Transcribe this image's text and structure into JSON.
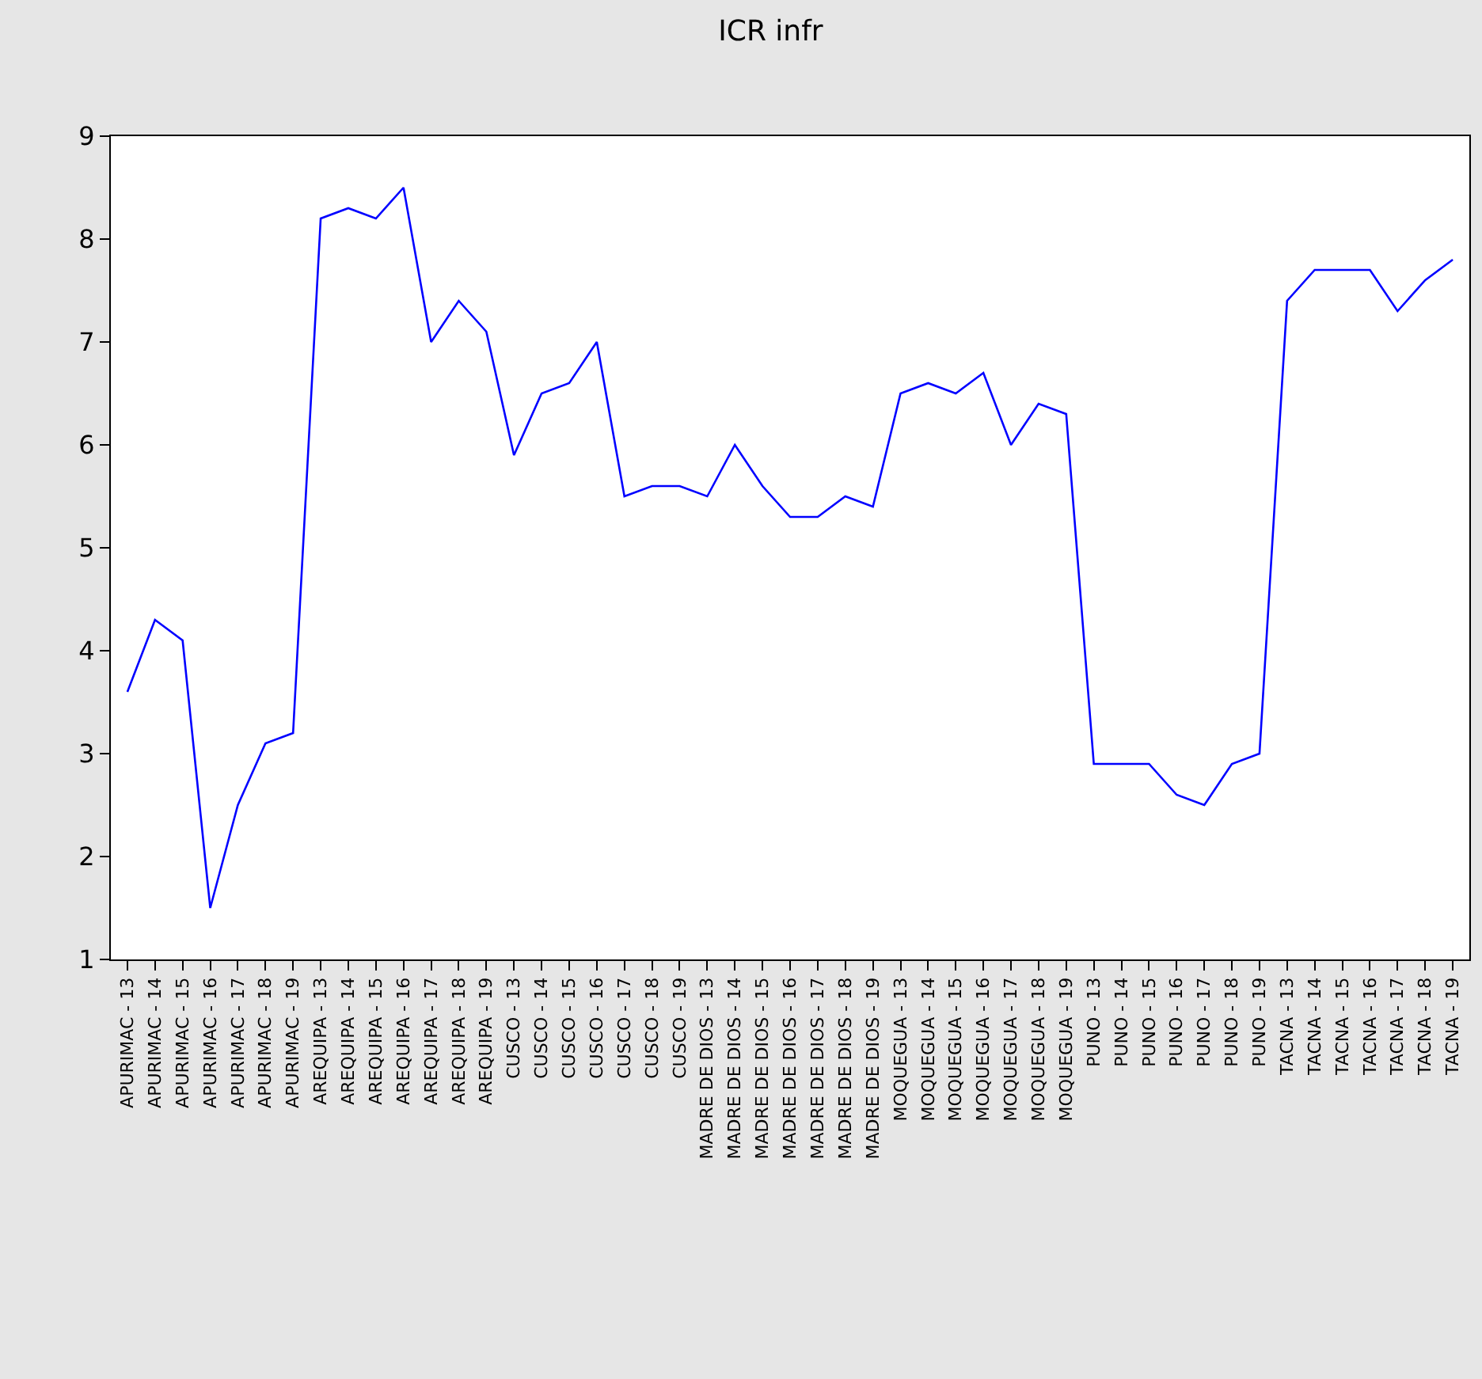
{
  "chart_data": {
    "type": "line",
    "title": "ICR infr",
    "categories": [
      "APURIMAC - 13",
      "APURIMAC - 14",
      "APURIMAC - 15",
      "APURIMAC - 16",
      "APURIMAC - 17",
      "APURIMAC - 18",
      "APURIMAC - 19",
      "AREQUIPA - 13",
      "AREQUIPA - 14",
      "AREQUIPA - 15",
      "AREQUIPA - 16",
      "AREQUIPA - 17",
      "AREQUIPA - 18",
      "AREQUIPA - 19",
      "CUSCO - 13",
      "CUSCO - 14",
      "CUSCO - 15",
      "CUSCO - 16",
      "CUSCO - 17",
      "CUSCO - 18",
      "CUSCO - 19",
      "MADRE DE DIOS - 13",
      "MADRE DE DIOS - 14",
      "MADRE DE DIOS - 15",
      "MADRE DE DIOS - 16",
      "MADRE DE DIOS - 17",
      "MADRE DE DIOS - 18",
      "MADRE DE DIOS - 19",
      "MOQUEGUA - 13",
      "MOQUEGUA - 14",
      "MOQUEGUA - 15",
      "MOQUEGUA - 16",
      "MOQUEGUA - 17",
      "MOQUEGUA - 18",
      "MOQUEGUA - 19",
      "PUNO - 13",
      "PUNO - 14",
      "PUNO - 15",
      "PUNO - 16",
      "PUNO - 17",
      "PUNO - 18",
      "PUNO - 19",
      "TACNA - 13",
      "TACNA - 14",
      "TACNA - 15",
      "TACNA - 16",
      "TACNA - 17",
      "TACNA - 18",
      "TACNA - 19"
    ],
    "series": [
      {
        "color": "#0000ff",
        "values": [
          3.6,
          4.3,
          4.1,
          1.5,
          2.5,
          3.1,
          3.2,
          8.2,
          8.3,
          8.2,
          8.5,
          7.0,
          7.4,
          7.1,
          5.9,
          6.5,
          6.6,
          7.0,
          5.5,
          5.6,
          5.6,
          5.5,
          6.0,
          5.6,
          5.3,
          5.3,
          5.5,
          5.4,
          6.5,
          6.6,
          6.5,
          6.7,
          6.0,
          6.4,
          6.3,
          2.9,
          2.9,
          2.9,
          2.6,
          2.5,
          2.9,
          3.0,
          7.4,
          7.7,
          7.7,
          7.7,
          7.3,
          7.6,
          7.8
        ]
      }
    ],
    "ylim": [
      1,
      9
    ],
    "yticks": [
      1,
      2,
      3,
      4,
      5,
      6,
      7,
      8,
      9
    ],
    "marker": "none",
    "line_style": "solid"
  }
}
